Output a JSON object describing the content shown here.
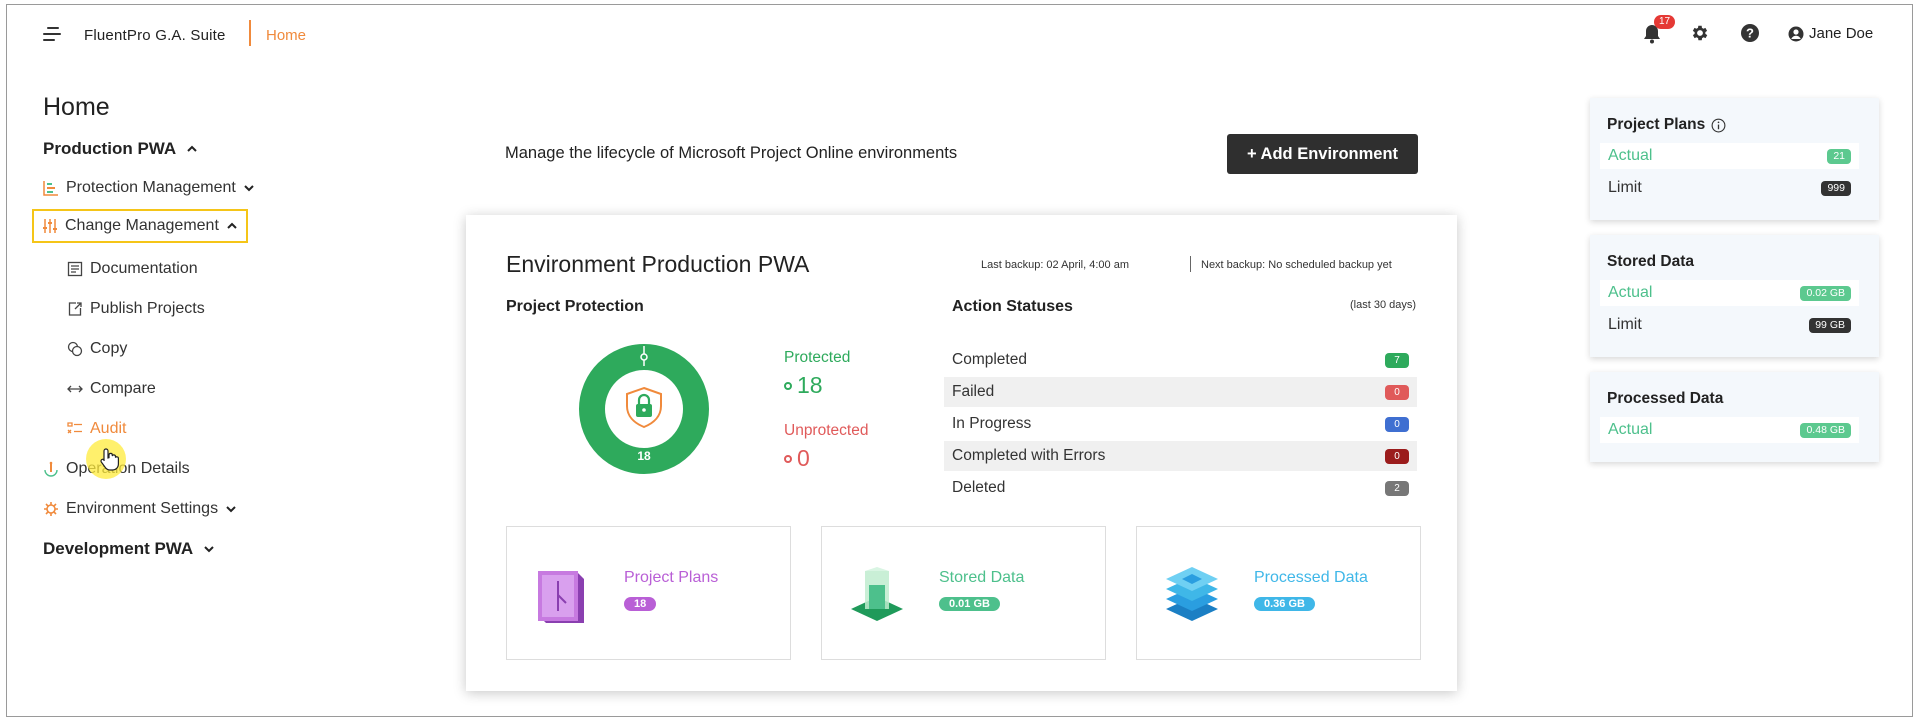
{
  "header": {
    "app_name": "FluentPro G.A. Suite",
    "current_page": "Home",
    "notification_count": "17",
    "user_name": "Jane Doe"
  },
  "sidebar": {
    "title": "Home",
    "production_section": "Production PWA",
    "items": [
      {
        "label": "Protection Management",
        "icon": "chart-bars-icon"
      },
      {
        "label": "Change Management",
        "icon": "sliders-icon"
      },
      {
        "label": "Documentation",
        "icon": "document-icon"
      },
      {
        "label": "Publish Projects",
        "icon": "publish-icon"
      },
      {
        "label": "Copy",
        "icon": "copy-icon"
      },
      {
        "label": "Compare",
        "icon": "compare-arrows-icon"
      },
      {
        "label": "Audit",
        "icon": "audit-list-icon"
      },
      {
        "label": "Operation Details",
        "icon": "info-icon"
      },
      {
        "label": "Environment Settings",
        "icon": "gear-icon"
      }
    ],
    "development_section": "Development PWA"
  },
  "main": {
    "subtitle": "Manage the lifecycle of Microsoft Project Online environments",
    "add_button": "+ Add Environment",
    "env_title": "Environment Production PWA",
    "last_backup": "Last backup: 02 April, 4:00 am",
    "next_backup": "Next backup: No scheduled backup yet",
    "project_protection": {
      "title": "Project Protection",
      "total": "18",
      "protected_label": "Protected",
      "protected_value": "18",
      "unprotected_label": "Unprotected",
      "unprotected_value": "0",
      "protected_fraction": 1.0
    },
    "action_statuses": {
      "title": "Action Statuses",
      "period": "(last 30 days)",
      "rows": [
        {
          "label": "Completed",
          "value": "7",
          "color": "#2eaa5c"
        },
        {
          "label": "Failed",
          "value": "0",
          "color": "#e05a5a"
        },
        {
          "label": "In Progress",
          "value": "0",
          "color": "#3f6fd1"
        },
        {
          "label": "Completed with Errors",
          "value": "0",
          "color": "#9b1c1c"
        },
        {
          "label": "Deleted",
          "value": "2",
          "color": "#777777"
        }
      ]
    },
    "tiles": [
      {
        "name": "Project Plans",
        "value": "18",
        "color": "#b95fd6",
        "icon": "project-plans-icon"
      },
      {
        "name": "Stored Data",
        "value": "0.01 GB",
        "color": "#4dc08c",
        "icon": "stored-data-icon"
      },
      {
        "name": "Processed Data",
        "value": "0.36 GB",
        "color": "#3fb7e8",
        "icon": "processed-data-icon"
      }
    ]
  },
  "right_panels": [
    {
      "title": "Project Plans",
      "actual_label": "Actual",
      "actual_value": "21",
      "limit_label": "Limit",
      "limit_value": "999"
    },
    {
      "title": "Stored Data",
      "actual_label": "Actual",
      "actual_value": "0.02 GB",
      "limit_label": "Limit",
      "limit_value": "99 GB"
    },
    {
      "title": "Processed Data",
      "actual_label": "Actual",
      "actual_value": "0.48 GB"
    }
  ],
  "colors": {
    "accent": "#f08a3c",
    "green": "#2eaa5c",
    "red": "#e05a5a",
    "dark": "#2f2f2f"
  }
}
